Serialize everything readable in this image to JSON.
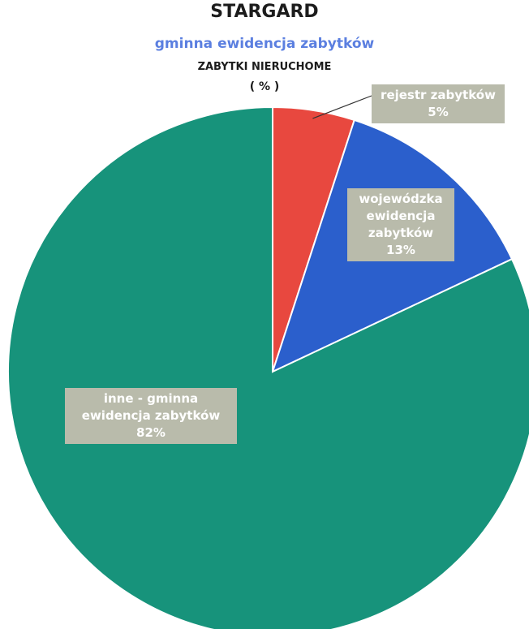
{
  "chart_data": {
    "type": "pie",
    "title": "STARGARD",
    "subtitle": "gminna ewidencja zabytków",
    "subtitle2": "ZABYTKI NIERUCHOME",
    "unit": "( % )",
    "slices": [
      {
        "label": "rejestr zabytków",
        "value": 5,
        "value_label": "5%",
        "color": "#e8483f"
      },
      {
        "label": "wojewódzka ewidencja zabytków",
        "value": 13,
        "value_label": "13%",
        "color": "#2b5fcc"
      },
      {
        "label": "inne - gminna ewidencja zabytków",
        "value": 82,
        "value_label": "82%",
        "color": "#17937b"
      }
    ],
    "label_background": "#b9bbab",
    "label_text_color": "#ffffff"
  }
}
